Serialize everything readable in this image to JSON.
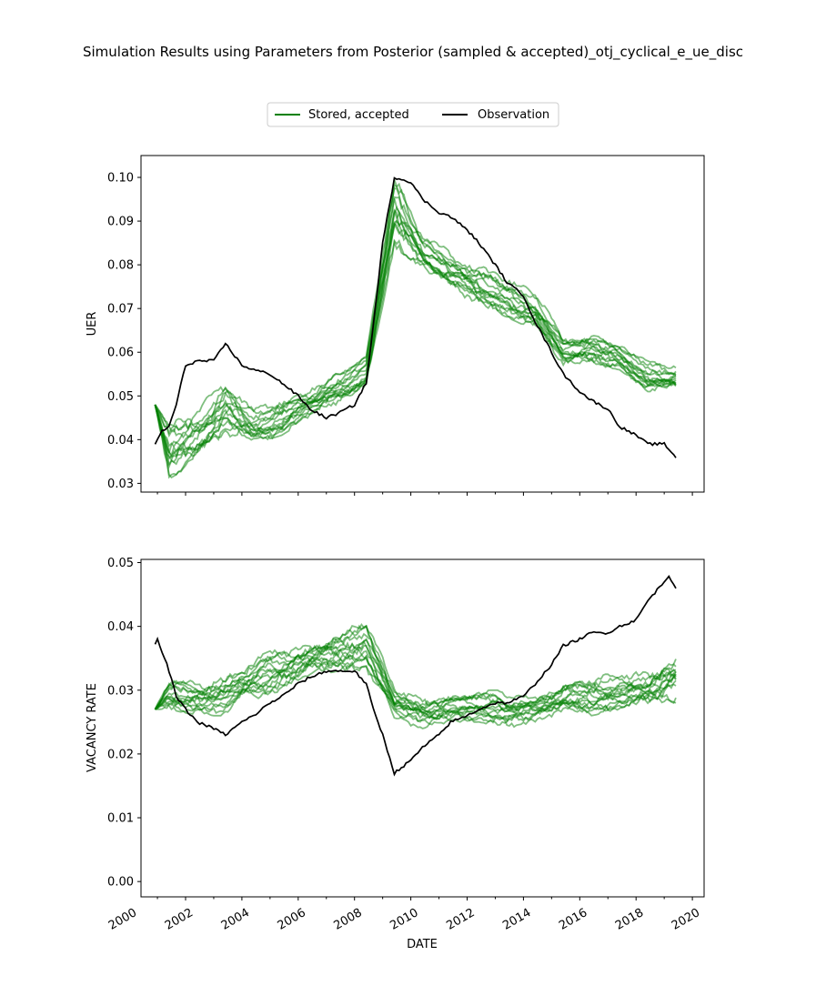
{
  "figure": {
    "title": "Simulation Results using Parameters from Posterior (sampled & accepted)_otj_cyclical_e_ue_disc"
  },
  "legend": {
    "placement": "upper-center",
    "entries": [
      {
        "label": "Stored, accepted",
        "color": "#008000"
      },
      {
        "label": "Observation",
        "color": "#000000"
      }
    ]
  },
  "colors": {
    "simulation": "#008000",
    "observation": "#000000"
  },
  "chart_data": [
    {
      "type": "line",
      "ylabel": "UER",
      "xlabel": "",
      "xlim": [
        "2000-06",
        "2020-06"
      ],
      "ylim": [
        0.028,
        0.105
      ],
      "yticks": [
        0.03,
        0.04,
        0.05,
        0.06,
        0.07,
        0.08,
        0.09,
        0.1
      ],
      "ytick_labels": [
        "0.03",
        "0.04",
        "0.05",
        "0.06",
        "0.07",
        "0.08",
        "0.09",
        "0.10"
      ],
      "grid": false,
      "simulation_band": {
        "name": "Stored, accepted",
        "x": [
          "2000-12",
          "2001-06",
          "2002-06",
          "2003-06",
          "2004-06",
          "2005-06",
          "2006-06",
          "2007-06",
          "2008-06",
          "2009-06",
          "2010-06",
          "2011-06",
          "2012-06",
          "2013-06",
          "2014-06",
          "2015-06",
          "2016-06",
          "2017-06",
          "2018-06",
          "2019-06"
        ],
        "low": [
          0.048,
          0.031,
          0.035,
          0.041,
          0.039,
          0.041,
          0.045,
          0.048,
          0.052,
          0.084,
          0.079,
          0.074,
          0.071,
          0.068,
          0.065,
          0.057,
          0.057,
          0.056,
          0.051,
          0.051
        ],
        "high": [
          0.048,
          0.045,
          0.048,
          0.053,
          0.047,
          0.05,
          0.052,
          0.056,
          0.059,
          0.102,
          0.088,
          0.083,
          0.08,
          0.077,
          0.074,
          0.064,
          0.065,
          0.062,
          0.058,
          0.057
        ]
      },
      "series": [
        {
          "name": "Observation",
          "x": [
            "2000-12",
            "2001-03",
            "2001-06",
            "2001-09",
            "2002-01",
            "2002-06",
            "2003-01",
            "2003-06",
            "2004-01",
            "2004-06",
            "2005-01",
            "2005-06",
            "2006-01",
            "2006-06",
            "2007-01",
            "2007-06",
            "2008-01",
            "2008-06",
            "2008-09",
            "2009-01",
            "2009-06",
            "2010-01",
            "2010-06",
            "2011-01",
            "2011-06",
            "2012-01",
            "2012-06",
            "2013-01",
            "2013-06",
            "2014-01",
            "2014-06",
            "2015-01",
            "2015-06",
            "2016-01",
            "2016-06",
            "2017-01",
            "2017-06",
            "2018-01",
            "2018-06",
            "2019-01",
            "2019-06"
          ],
          "y": [
            0.039,
            0.042,
            0.043,
            0.048,
            0.057,
            0.058,
            0.058,
            0.062,
            0.057,
            0.056,
            0.055,
            0.053,
            0.05,
            0.047,
            0.045,
            0.046,
            0.048,
            0.053,
            0.066,
            0.085,
            0.1,
            0.099,
            0.095,
            0.092,
            0.091,
            0.088,
            0.085,
            0.08,
            0.076,
            0.073,
            0.067,
            0.06,
            0.055,
            0.051,
            0.049,
            0.047,
            0.043,
            0.041,
            0.039,
            0.039,
            0.036
          ]
        }
      ]
    },
    {
      "type": "line",
      "ylabel": "VACANCY RATE",
      "xlabel": "DATE",
      "xlim": [
        "2000-06",
        "2020-06"
      ],
      "ylim": [
        -0.0024,
        0.0505
      ],
      "xticks": [
        "2000",
        "2002",
        "2004",
        "2006",
        "2008",
        "2010",
        "2012",
        "2014",
        "2016",
        "2018",
        "2020"
      ],
      "yticks": [
        0.0,
        0.01,
        0.02,
        0.03,
        0.04,
        0.05
      ],
      "ytick_labels": [
        "0.00",
        "0.01",
        "0.02",
        "0.03",
        "0.04",
        "0.05"
      ],
      "grid": false,
      "simulation_band": {
        "name": "Stored, accepted",
        "x": [
          "2000-12",
          "2001-06",
          "2002-06",
          "2003-06",
          "2004-06",
          "2005-06",
          "2006-06",
          "2007-06",
          "2008-06",
          "2009-06",
          "2010-06",
          "2011-06",
          "2012-06",
          "2013-06",
          "2014-06",
          "2015-06",
          "2016-06",
          "2017-06",
          "2018-06",
          "2019-06"
        ],
        "low": [
          0.027,
          0.027,
          0.026,
          0.026,
          0.028,
          0.03,
          0.032,
          0.033,
          0.033,
          0.025,
          0.024,
          0.025,
          0.025,
          0.024,
          0.025,
          0.026,
          0.026,
          0.027,
          0.027,
          0.028
        ],
        "high": [
          0.027,
          0.032,
          0.033,
          0.033,
          0.035,
          0.037,
          0.039,
          0.04,
          0.041,
          0.031,
          0.03,
          0.03,
          0.03,
          0.03,
          0.03,
          0.032,
          0.032,
          0.033,
          0.034,
          0.036
        ]
      },
      "series": [
        {
          "name": "Observation",
          "x": [
            "2000-12",
            "2001-01",
            "2001-06",
            "2001-09",
            "2002-01",
            "2002-06",
            "2003-01",
            "2003-06",
            "2004-01",
            "2004-06",
            "2005-01",
            "2005-06",
            "2006-01",
            "2006-06",
            "2007-01",
            "2007-06",
            "2008-01",
            "2008-06",
            "2008-09",
            "2009-01",
            "2009-06",
            "2010-01",
            "2010-06",
            "2011-01",
            "2011-06",
            "2012-01",
            "2012-06",
            "2013-01",
            "2013-06",
            "2014-01",
            "2014-06",
            "2015-01",
            "2015-06",
            "2016-01",
            "2016-06",
            "2017-01",
            "2017-06",
            "2018-01",
            "2018-06",
            "2019-01",
            "2019-03",
            "2019-06"
          ],
          "y": [
            0.037,
            0.038,
            0.033,
            0.029,
            0.027,
            0.025,
            0.024,
            0.023,
            0.025,
            0.026,
            0.028,
            0.029,
            0.031,
            0.032,
            0.033,
            0.033,
            0.033,
            0.031,
            0.027,
            0.023,
            0.017,
            0.019,
            0.021,
            0.023,
            0.025,
            0.026,
            0.027,
            0.028,
            0.028,
            0.029,
            0.031,
            0.034,
            0.037,
            0.038,
            0.039,
            0.039,
            0.04,
            0.041,
            0.044,
            0.047,
            0.048,
            0.046
          ]
        }
      ]
    }
  ]
}
